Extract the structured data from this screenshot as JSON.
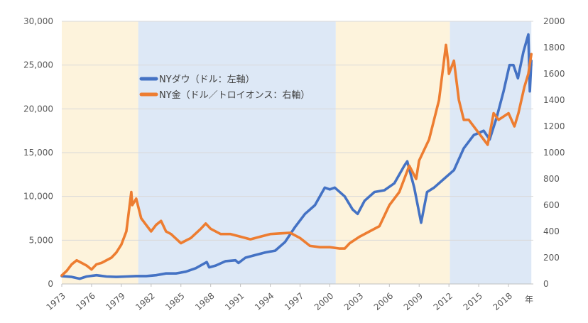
{
  "chart_data": {
    "type": "line",
    "title": "",
    "xlabel": "年",
    "ylabel_left": "",
    "ylabel_right": "",
    "xlim": [
      1973,
      2020.5
    ],
    "ylim_left": [
      0,
      30000
    ],
    "ylim_right": [
      0,
      2000
    ],
    "x_tick_labels": [
      "1973",
      "1976",
      "1979",
      "1982",
      "1985",
      "1988",
      "1991",
      "1994",
      "1997",
      "2000",
      "2003",
      "2006",
      "2009",
      "2012",
      "2015",
      "2018"
    ],
    "y_left_tick_labels": [
      "0",
      "5,000",
      "10,000",
      "15,000",
      "20,000",
      "25,000",
      "30,000"
    ],
    "y_right_tick_labels": [
      "0",
      "200",
      "400",
      "600",
      "800",
      "1000",
      "1200",
      "1400",
      "1600",
      "1800",
      "2000"
    ],
    "grid": true,
    "legend_position": "top-left",
    "background_bands": [
      {
        "from": 1973,
        "to": 1980.7,
        "color": "#fdf3dc"
      },
      {
        "from": 1980.7,
        "to": 2000.6,
        "color": "#dde8f6"
      },
      {
        "from": 2000.6,
        "to": 2012.1,
        "color": "#fdf3dc"
      },
      {
        "from": 2012.1,
        "to": 2020.3,
        "color": "#dde8f6"
      }
    ],
    "series": [
      {
        "name": "NYダウ（ドル：左軸）",
        "axis": "left",
        "color": "#4472c4",
        "x": [
          1973,
          1974,
          1974.8,
          1975.5,
          1976.5,
          1977.5,
          1978.5,
          1979.5,
          1980.5,
          1981.5,
          1982.5,
          1983.5,
          1984.5,
          1985.5,
          1986.5,
          1987.6,
          1987.85,
          1988.5,
          1989.5,
          1990.5,
          1990.8,
          1991.5,
          1992.5,
          1993.5,
          1994.5,
          1995.5,
          1996.5,
          1997.5,
          1998.5,
          1999.5,
          2000,
          2000.5,
          2001.5,
          2002.3,
          2002.8,
          2003.5,
          2004.5,
          2005.5,
          2006.5,
          2007.5,
          2007.8,
          2008.5,
          2009.2,
          2009.8,
          2010.5,
          2011.5,
          2012.5,
          2013.5,
          2014.5,
          2015.5,
          2016.1,
          2016.8,
          2017.5,
          2018.1,
          2018.5,
          2018.95,
          2019.5,
          2020.0,
          2020.15,
          2020.3
        ],
        "values": [
          900,
          800,
          600,
          850,
          1000,
          850,
          800,
          850,
          900,
          900,
          1000,
          1200,
          1200,
          1400,
          1800,
          2500,
          1900,
          2100,
          2600,
          2700,
          2400,
          3000,
          3300,
          3600,
          3800,
          4800,
          6500,
          8000,
          9000,
          11000,
          10800,
          11000,
          10000,
          8500,
          8000,
          9500,
          10500,
          10700,
          11500,
          13500,
          14000,
          11000,
          7000,
          10500,
          11000,
          12000,
          13000,
          15500,
          17000,
          17500,
          16500,
          19000,
          22000,
          25000,
          25000,
          23500,
          26500,
          28500,
          22000,
          25500
        ]
      },
      {
        "name": "NY金（ドル／トロイオンス：右軸）",
        "axis": "right",
        "color": "#ed7d31",
        "x": [
          1973,
          1973.5,
          1974,
          1974.5,
          1975,
          1975.5,
          1976,
          1976.5,
          1977,
          1978,
          1978.5,
          1979,
          1979.5,
          1980.0,
          1980.1,
          1980.5,
          1981,
          1981.5,
          1982,
          1982.5,
          1983,
          1983.5,
          1984,
          1985,
          1985.5,
          1986,
          1987,
          1987.5,
          1988,
          1989,
          1990,
          1991,
          1992,
          1993,
          1994,
          1995,
          1996,
          1997,
          1998,
          1999,
          2000,
          2001,
          2001.5,
          2002,
          2003,
          2004,
          2005,
          2006,
          2007,
          2008,
          2008.7,
          2009,
          2010,
          2010.5,
          2011,
          2011.7,
          2011.9,
          2012,
          2012.5,
          2013,
          2013.5,
          2014,
          2015,
          2015.9,
          2016.5,
          2017,
          2018,
          2018.6,
          2019,
          2019.6,
          2020,
          2020.3
        ],
        "values": [
          65,
          100,
          150,
          180,
          160,
          140,
          110,
          150,
          160,
          200,
          240,
          300,
          400,
          700,
          600,
          650,
          500,
          450,
          400,
          450,
          480,
          400,
          380,
          310,
          330,
          350,
          420,
          460,
          420,
          380,
          380,
          360,
          340,
          360,
          380,
          385,
          390,
          350,
          290,
          280,
          280,
          270,
          270,
          310,
          360,
          400,
          440,
          600,
          700,
          900,
          800,
          940,
          1100,
          1250,
          1400,
          1820,
          1700,
          1600,
          1700,
          1400,
          1250,
          1250,
          1150,
          1060,
          1300,
          1250,
          1300,
          1200,
          1300,
          1500,
          1600,
          1750
        ]
      }
    ]
  }
}
